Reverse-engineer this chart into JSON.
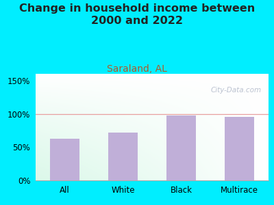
{
  "title": "Change in household income between\n2000 and 2022",
  "subtitle": "Saraland, AL",
  "categories": [
    "All",
    "White",
    "Black",
    "Multirace"
  ],
  "values": [
    63,
    72,
    97,
    95
  ],
  "bar_color": "#c0afd8",
  "title_fontsize": 11.5,
  "subtitle_fontsize": 10,
  "subtitle_color": "#b05a28",
  "title_color": "#222222",
  "background_outer": "#00eeff",
  "yticks": [
    0,
    50,
    100,
    150
  ],
  "ylim": [
    0,
    160
  ],
  "grid_color": "#e8a0a0",
  "watermark": "City-Data.com"
}
